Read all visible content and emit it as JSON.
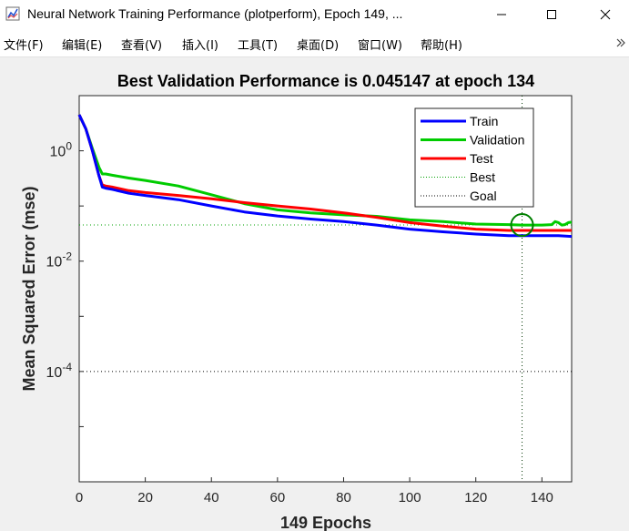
{
  "window": {
    "title": "Neural Network Training Performance (plotperform), Epoch 149, ...",
    "minimize_glyph": "—",
    "maximize_glyph": "☐",
    "close_glyph": "✕"
  },
  "menubar": {
    "items": [
      {
        "label": "文件(F)"
      },
      {
        "label": "编辑(E)"
      },
      {
        "label": "查看(V)"
      },
      {
        "label": "插入(I)"
      },
      {
        "label": "工具(T)"
      },
      {
        "label": "桌面(D)"
      },
      {
        "label": "窗口(W)"
      },
      {
        "label": "帮助(H)"
      }
    ]
  },
  "icons": {
    "app": "matlab-figure-icon",
    "expand": "double-chevron-right-icon"
  },
  "colors": {
    "train": "#0000ff",
    "validation": "#00cc00",
    "test": "#ff0000",
    "best_marker": "#007f00"
  },
  "chart_data": {
    "type": "line",
    "title": "Best Validation Performance is 0.045147 at epoch 134",
    "xlabel": "149 Epochs",
    "ylabel": "Mean Squared Error  (mse)",
    "y_scale": "log",
    "xlim": [
      0,
      149
    ],
    "ylim": [
      1e-06,
      10
    ],
    "x_ticks": [
      0,
      20,
      40,
      60,
      80,
      100,
      120,
      140
    ],
    "y_ticks": [
      {
        "value": 1,
        "base": "10",
        "exp": "0"
      },
      {
        "value": 0.01,
        "base": "10",
        "exp": "-2"
      },
      {
        "value": 0.0001,
        "base": "10",
        "exp": "-4"
      }
    ],
    "legend_position": "top-right",
    "best": {
      "epoch": 134,
      "value": 0.045147
    },
    "goal": 0.0001,
    "series": [
      {
        "name": "Train",
        "x": [
          0,
          2,
          4,
          6,
          7,
          8,
          10,
          15,
          20,
          30,
          40,
          50,
          60,
          70,
          80,
          90,
          100,
          110,
          120,
          130,
          134,
          140,
          145,
          149
        ],
        "y": [
          4.5,
          2.5,
          1.0,
          0.35,
          0.22,
          0.21,
          0.2,
          0.17,
          0.155,
          0.13,
          0.1,
          0.078,
          0.066,
          0.058,
          0.052,
          0.045,
          0.038,
          0.034,
          0.031,
          0.029,
          0.029,
          0.029,
          0.029,
          0.028
        ]
      },
      {
        "name": "Validation",
        "x": [
          0,
          2,
          4,
          6,
          7,
          8,
          10,
          15,
          20,
          30,
          40,
          50,
          60,
          70,
          80,
          90,
          100,
          110,
          120,
          130,
          134,
          140,
          143,
          144,
          145,
          146,
          147,
          148,
          149
        ],
        "y": [
          4.5,
          2.5,
          1.1,
          0.5,
          0.38,
          0.38,
          0.36,
          0.32,
          0.29,
          0.23,
          0.16,
          0.11,
          0.085,
          0.075,
          0.069,
          0.065,
          0.056,
          0.052,
          0.047,
          0.046,
          0.045147,
          0.045,
          0.046,
          0.052,
          0.05,
          0.045,
          0.046,
          0.05,
          0.051
        ]
      },
      {
        "name": "Test",
        "x": [
          0,
          2,
          4,
          6,
          7,
          8,
          10,
          15,
          20,
          30,
          40,
          50,
          60,
          70,
          80,
          90,
          100,
          110,
          120,
          130,
          134,
          140,
          145,
          149
        ],
        "y": [
          4.5,
          2.5,
          1.0,
          0.35,
          0.24,
          0.23,
          0.22,
          0.19,
          0.175,
          0.155,
          0.135,
          0.115,
          0.1,
          0.088,
          0.075,
          0.062,
          0.05,
          0.043,
          0.038,
          0.036,
          0.036,
          0.036,
          0.036,
          0.036
        ]
      }
    ],
    "legend": [
      {
        "label": "Train",
        "style": "solid",
        "color": "#0000ff"
      },
      {
        "label": "Validation",
        "style": "solid",
        "color": "#00cc00"
      },
      {
        "label": "Test",
        "style": "solid",
        "color": "#ff0000"
      },
      {
        "label": "Best",
        "style": "dotted",
        "color": "#00a000"
      },
      {
        "label": "Goal",
        "style": "dotted",
        "color": "#000000"
      }
    ]
  }
}
